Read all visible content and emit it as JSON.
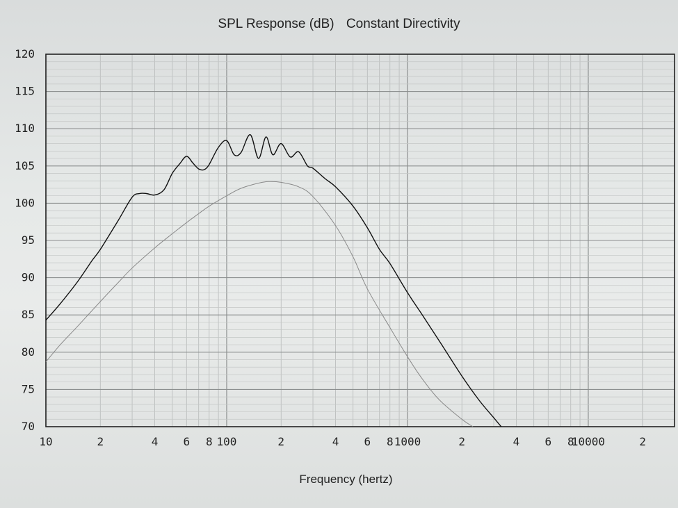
{
  "title": {
    "left": "SPL Response (dB)",
    "right": "Constant Directivity"
  },
  "chart_data": {
    "type": "line",
    "title": "SPL Response (dB)   Constant Directivity",
    "xlabel": "Frequency (hertz)",
    "ylabel": "",
    "xscale": "log",
    "xlim": [
      10,
      30000
    ],
    "ylim": [
      70,
      120
    ],
    "grid": true,
    "x_tick_labels": [
      "10",
      "2",
      "4",
      "6",
      "8",
      "100",
      "2",
      "4",
      "6",
      "8",
      "1000",
      "2",
      "4",
      "6",
      "8",
      "10000",
      "2"
    ],
    "x_tick_values": [
      10,
      20,
      40,
      60,
      80,
      100,
      200,
      400,
      600,
      800,
      1000,
      2000,
      4000,
      6000,
      8000,
      10000,
      20000
    ],
    "y_tick_labels": [
      "120",
      "115",
      "110",
      "105",
      "100",
      "95",
      "90",
      "85",
      "80",
      "75",
      "70"
    ],
    "y_tick_values": [
      120,
      115,
      110,
      105,
      100,
      95,
      90,
      85,
      80,
      75,
      70
    ],
    "series": [
      {
        "name": "",
        "color": "#111111",
        "x": [
          10,
          12,
          15,
          18,
          20,
          25,
          30,
          33,
          36,
          40,
          45,
          50,
          55,
          60,
          65,
          70,
          75,
          80,
          90,
          100,
          110,
          120,
          135,
          150,
          165,
          180,
          200,
          225,
          250,
          280,
          300,
          350,
          400,
          500,
          600,
          700,
          800,
          1000,
          1200,
          1500,
          2000,
          2500,
          3000,
          3300
        ],
        "y": [
          84.3,
          86.5,
          89.5,
          92.3,
          93.8,
          97.6,
          100.8,
          101.3,
          101.3,
          101.1,
          101.8,
          104.0,
          105.3,
          106.3,
          105.4,
          104.6,
          104.5,
          105.2,
          107.5,
          108.4,
          106.5,
          106.8,
          109.2,
          106.0,
          108.9,
          106.5,
          108.0,
          106.2,
          106.9,
          105.0,
          104.7,
          103.3,
          102.2,
          99.6,
          96.7,
          93.8,
          91.9,
          88.0,
          85.1,
          81.5,
          76.8,
          73.5,
          71.2,
          70.0
        ]
      },
      {
        "name": "",
        "color": "#8a8a8a",
        "x": [
          10,
          12,
          15,
          20,
          25,
          30,
          40,
          50,
          60,
          70,
          80,
          100,
          120,
          150,
          170,
          200,
          250,
          300,
          400,
          500,
          600,
          800,
          1000,
          1200,
          1500,
          2000,
          2300
        ],
        "y": [
          78.7,
          81.0,
          83.5,
          86.8,
          89.3,
          91.3,
          94.0,
          95.9,
          97.4,
          98.6,
          99.6,
          101.0,
          102.0,
          102.7,
          102.9,
          102.8,
          102.2,
          100.9,
          97.0,
          92.8,
          88.5,
          83.3,
          79.4,
          76.5,
          73.6,
          71.0,
          70.0
        ]
      }
    ]
  }
}
